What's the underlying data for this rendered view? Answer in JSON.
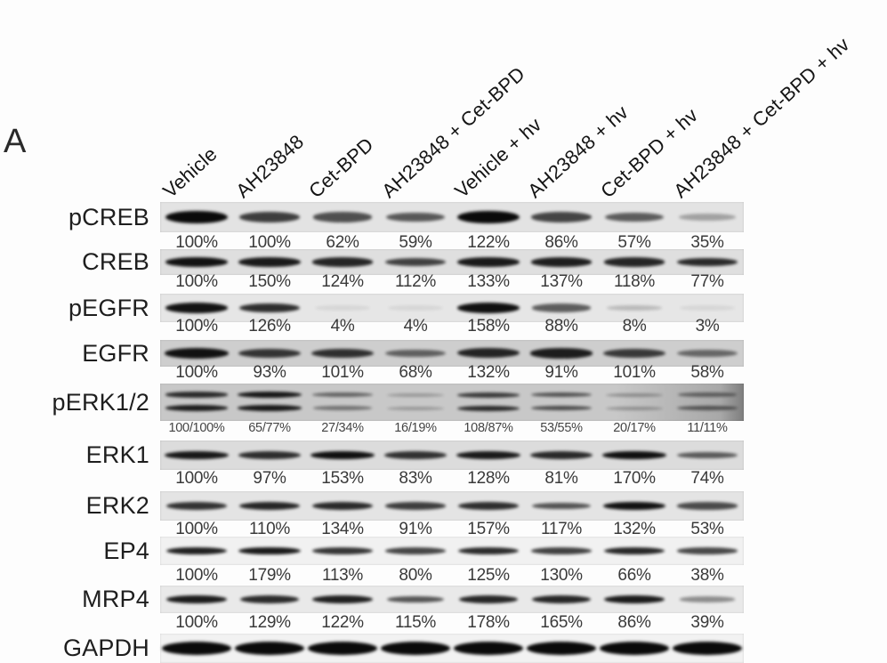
{
  "panel_label": "A",
  "figure": {
    "type": "western-blot",
    "lane_labels": [
      "Vehicle",
      "AH23848",
      "Cet-BPD",
      "AH23848 + Cet-BPD",
      "Vehicle + hv",
      "AH23848 + hv",
      "Cet-BPD + hv",
      "AH23848 + Cet-BPD + hv"
    ],
    "rows": [
      {
        "protein": "pCREB",
        "percents": [
          "100%",
          "100%",
          "62%",
          "59%",
          "122%",
          "86%",
          "57%",
          "35%"
        ],
        "band_intensities": [
          1.0,
          0.72,
          0.62,
          0.58,
          1.0,
          0.68,
          0.55,
          0.18
        ],
        "double_band": false,
        "strip_bg": "#e3e3e3"
      },
      {
        "protein": "CREB",
        "percents": [
          "100%",
          "150%",
          "124%",
          "112%",
          "133%",
          "137%",
          "118%",
          "77%"
        ],
        "band_intensities": [
          0.95,
          0.9,
          0.85,
          0.7,
          0.9,
          0.88,
          0.85,
          0.82
        ],
        "double_band": false,
        "strip_bg": "#dfdfdf"
      },
      {
        "protein": "pEGFR",
        "percents": [
          "100%",
          "126%",
          "4%",
          "4%",
          "158%",
          "88%",
          "8%",
          "3%"
        ],
        "band_intensities": [
          0.95,
          0.8,
          0.04,
          0.04,
          0.97,
          0.55,
          0.06,
          0.03
        ],
        "double_band": false,
        "strip_bg": "#e6e6e6"
      },
      {
        "protein": "EGFR",
        "percents": [
          "100%",
          "93%",
          "101%",
          "68%",
          "132%",
          "91%",
          "101%",
          "58%"
        ],
        "band_intensities": [
          0.95,
          0.75,
          0.78,
          0.5,
          0.85,
          0.88,
          0.72,
          0.45
        ],
        "double_band": false,
        "strip_bg": "#cecece"
      },
      {
        "protein": "pERK1/2",
        "percents": [
          "100/100%",
          "65/77%",
          "27/34%",
          "16/19%",
          "108/87%",
          "53/55%",
          "20/17%",
          "11/11%"
        ],
        "band_intensities": [
          0.8,
          0.92,
          0.45,
          0.12,
          0.7,
          0.55,
          0.18,
          0.4
        ],
        "band_intensities_lower": [
          0.88,
          0.9,
          0.35,
          0.12,
          0.8,
          0.6,
          0.15,
          0.5
        ],
        "double_band": true,
        "strip_bg": "#c8c8c8",
        "dark_right_edge": true
      },
      {
        "protein": "ERK1",
        "percents": [
          "100%",
          "97%",
          "153%",
          "83%",
          "128%",
          "81%",
          "170%",
          "74%"
        ],
        "band_intensities": [
          0.92,
          0.8,
          0.97,
          0.78,
          0.9,
          0.82,
          0.97,
          0.55
        ],
        "double_band": false,
        "strip_bg": "#dcdcdc"
      },
      {
        "protein": "ERK2",
        "percents": [
          "100%",
          "110%",
          "134%",
          "91%",
          "157%",
          "117%",
          "132%",
          "53%"
        ],
        "band_intensities": [
          0.78,
          0.85,
          0.82,
          0.72,
          0.8,
          0.6,
          0.95,
          0.65
        ],
        "double_band": false,
        "strip_bg": "#e4e4e4"
      },
      {
        "protein": "EP4",
        "percents": [
          "100%",
          "179%",
          "113%",
          "80%",
          "125%",
          "130%",
          "66%",
          "38%"
        ],
        "band_intensities": [
          0.88,
          0.92,
          0.78,
          0.7,
          0.82,
          0.72,
          0.85,
          0.68
        ],
        "double_band": false,
        "strip_bg": "#f1f1f1"
      },
      {
        "protein": "MRP4",
        "percents": [
          "100%",
          "129%",
          "122%",
          "115%",
          "178%",
          "165%",
          "86%",
          "39%"
        ],
        "band_intensities": [
          0.9,
          0.82,
          0.88,
          0.6,
          0.85,
          0.85,
          0.9,
          0.3
        ],
        "double_band": false,
        "strip_bg": "#e9e9e9"
      },
      {
        "protein": "GAPDH",
        "percents": [],
        "band_intensities": [
          1,
          1,
          1,
          1,
          1,
          1,
          1,
          1
        ],
        "double_band": false,
        "strip_bg": "#f2f2f2"
      }
    ]
  },
  "colors": {
    "band": "#0a0a0a",
    "label_text": "#1e1e1e",
    "percent_text": "#3a3a3a",
    "background": "#fdfdfd"
  }
}
